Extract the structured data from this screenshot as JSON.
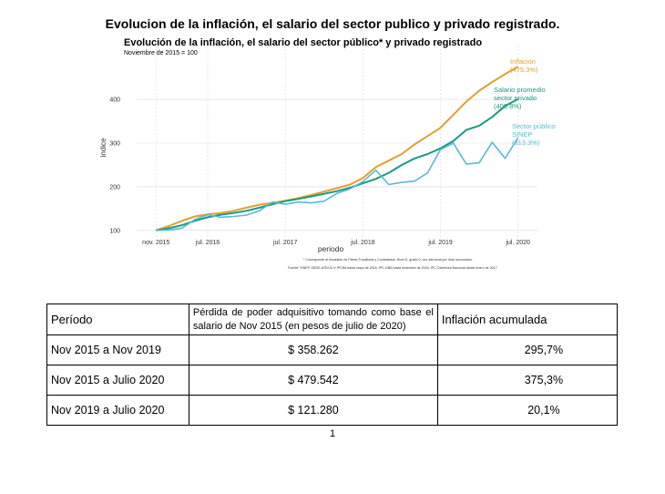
{
  "doc_title": "Evolucion de la inflación, el salario del sector publico y privado registrado.",
  "figure": {
    "title": "Evolución de la inflación, el salario del sector público* y privado registrado",
    "subtitle": "Noviembre de 2015 = 100",
    "footnote": "* Corresponde al escalafón de Planta Transitoria y Contratados. Nivel D, grado 0, con adicional por título secundario.",
    "source": "Fuente: SINEP, DEDE-ATE/UD e IPCBA hasta mayo de 2016, IPC-GBA hasta diciembre de 2016, IPC Cobertura Nacional desde enero de 2017."
  },
  "colors": {
    "inflacion": "#e0a030",
    "privado": "#1a9a82",
    "publico": "#5bb9d6",
    "grid": "#d9d9d9"
  },
  "chart_data": {
    "type": "line",
    "title": "Evolución de la inflación, el salario del sector público* y privado registrado",
    "subtitle": "Noviembre de 2015 = 100",
    "xlabel": "periodo",
    "ylabel": "indice",
    "ylim": [
      85,
      490
    ],
    "yticks": [
      100,
      200,
      300,
      400
    ],
    "xticks": [
      "nov. 2015",
      "jul. 2016",
      "jul. 2017",
      "jul. 2018",
      "jul. 2019",
      "jul. 2020"
    ],
    "x": [
      "2015-11",
      "2016-01",
      "2016-03",
      "2016-05",
      "2016-07",
      "2016-09",
      "2016-11",
      "2017-01",
      "2017-03",
      "2017-05",
      "2017-07",
      "2017-09",
      "2017-11",
      "2018-01",
      "2018-03",
      "2018-05",
      "2018-07",
      "2018-09",
      "2018-11",
      "2019-01",
      "2019-03",
      "2019-05",
      "2019-07",
      "2019-09",
      "2019-11",
      "2020-01",
      "2020-03",
      "2020-05",
      "2020-07"
    ],
    "series": [
      {
        "name": "Inflación",
        "end_label": [
          "Inflación",
          "(475.3%)"
        ],
        "values": [
          100,
          110,
          122,
          132,
          137,
          140,
          145,
          152,
          159,
          163,
          168,
          174,
          181,
          189,
          197,
          205,
          220,
          245,
          260,
          275,
          297,
          316,
          335,
          365,
          395,
          420,
          440,
          458,
          475
        ]
      },
      {
        "name": "Salario promedio sector privado",
        "end_label": [
          "Salario promedio",
          "sector privado",
          "(400.8%)"
        ],
        "values": [
          100,
          105,
          112,
          122,
          130,
          136,
          140,
          145,
          152,
          160,
          167,
          172,
          178,
          184,
          190,
          198,
          208,
          218,
          232,
          250,
          265,
          275,
          288,
          305,
          330,
          340,
          360,
          385,
          401
        ]
      },
      {
        "name": "Sector público SINEP",
        "end_label": [
          "Sector público",
          "SINEP",
          "(313.3%)"
        ],
        "values": [
          100,
          101,
          105,
          125,
          136,
          130,
          132,
          135,
          145,
          165,
          160,
          165,
          163,
          167,
          185,
          195,
          212,
          238,
          205,
          210,
          213,
          232,
          285,
          300,
          252,
          255,
          302,
          265,
          313
        ]
      }
    ]
  },
  "table": {
    "headers": {
      "periodo": "Período",
      "perdida": "Pérdida de poder adquisitivo tomando como base el salario de Nov 2015 (en pesos de julio de 2020)",
      "inflacion": "Inflación acumulada"
    },
    "rows": [
      {
        "periodo": "Nov 2015 a Nov 2019",
        "perdida": "$ 358.262",
        "inflacion": "295,7%"
      },
      {
        "periodo": "Nov 2015 a Julio 2020",
        "perdida": "$ 479.542",
        "inflacion": "375,3%"
      },
      {
        "periodo": "Nov 2019 a Julio 2020",
        "perdida": "$ 121.280",
        "inflacion": "20,1%"
      }
    ]
  },
  "page_number": "1"
}
